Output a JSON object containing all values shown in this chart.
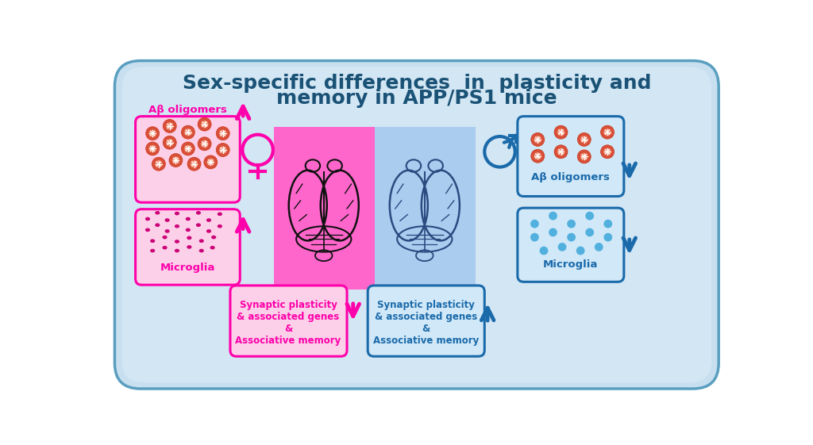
{
  "title_line1": "Sex-specific differences  in  plasticity and",
  "title_line2": "memory in APP/PS1 mice",
  "title_color": "#1a5276",
  "title_fontsize": 18,
  "bg_outer_color": "#c8dff0",
  "bg_outer_edge": "#5a9fc0",
  "female_brain_bg": "#ff66cc",
  "male_brain_bg": "#aaccee",
  "ab_label_female": "Aβ oligomers",
  "ab_label_male": "Aβ oligomers",
  "microglia_label_female": "Microglia",
  "microglia_label_male": "Microglia",
  "synaptic_label_female": "Synaptic plasticity\n& associated genes\n&\nAssociative memory",
  "synaptic_label_male": "Synaptic plasticity\n& associated genes\n&\nAssociative memory",
  "pink": "#ff00aa",
  "blue": "#1a6aaa",
  "amyloid_color": "#d9503a",
  "microglia_female_color": "#cc0077",
  "microglia_male_color": "#44aadd",
  "box_bg_pink": "#fcd0e8",
  "box_bg_blue": "#d0e8f8"
}
